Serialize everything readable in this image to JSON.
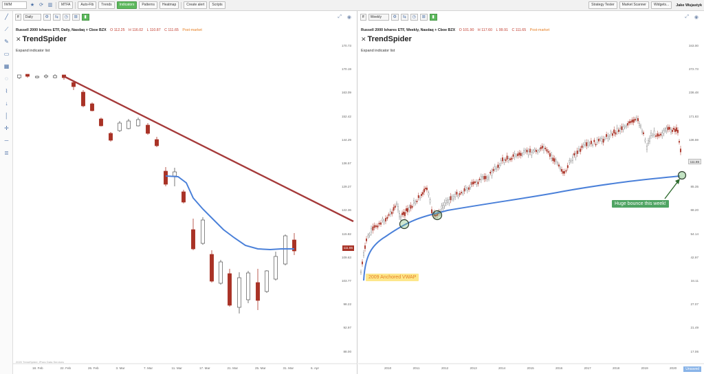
{
  "toolbar": {
    "symbol": "IWM",
    "buttons": [
      "MTFA",
      "Auto-Fib",
      "Trends",
      "Indicators",
      "Patterns",
      "Heatmap",
      "Create alert",
      "Scripts"
    ],
    "active_button": "Indicators",
    "right_buttons": [
      "Strategy Tester",
      "Market Scanner",
      "Widgets..."
    ],
    "user": "Jake Wujastyk"
  },
  "sidebar": {
    "tools": [
      "line-tool-icon",
      "ray-tool-icon",
      "pen-tool-icon",
      "rectangle-icon",
      "fill-icon",
      "circle-icon",
      "fib-icon",
      "arrow-down-icon",
      "vertical-line-icon",
      "cross-icon",
      "horizontal-line-icon",
      "measure-icon"
    ]
  },
  "left_chart": {
    "timeframe_select": "ff",
    "interval_select": "Daily",
    "title": "Russell 2000 Ishares ETF, Daily, Nasdaq + Cboe BZX",
    "open": "O 112.25",
    "high": "H 116.02",
    "low": "L 110.87",
    "close": "C 111.65",
    "status": "Post-market",
    "brand": "TrendSpider",
    "expand": "Expand indicator list",
    "y_labels": [
      "170.73",
      "170.19",
      "163.09",
      "152.42",
      "144.29",
      "136.57",
      "129.27",
      "122.36",
      "115.82",
      "109.63",
      "103.77",
      "98.22",
      "92.97",
      "88.00"
    ],
    "x_labels": [
      "18. Feb",
      "22. Feb",
      "26. Feb",
      "3. Mar",
      "7. Mar",
      "11. Mar",
      "17. Mar",
      "21. Mar",
      "25. Mar",
      "31. Mar",
      "6. Apr"
    ],
    "price_tag": "111.65",
    "watermark": "2020 TrendSpider, IPsec Data Services"
  },
  "right_chart": {
    "timeframe_select": "ff",
    "interval_select": "Weekly",
    "title": "Russell 2000 Ishares ETF, Weekly, Nasdaq + Cboe BZX",
    "open": "O 101.90",
    "high": "H 117.60",
    "low": "L 99.91",
    "close": "C 111.65",
    "status": "Post-market",
    "brand": "TrendSpider",
    "expand": "Expand indicator list",
    "y_labels": [
      "343.00",
      "272.73",
      "236.48",
      "171.83",
      "136.59",
      "111.65",
      "85.35",
      "68.20",
      "54.14",
      "42.97",
      "34.11",
      "27.07",
      "21.49",
      "17.06"
    ],
    "x_labels": [
      "2010",
      "2011",
      "2012",
      "2013",
      "2014",
      "2015",
      "2016",
      "2017",
      "2018",
      "2019",
      "2020"
    ],
    "price_tag": "111.65",
    "note_bounce": "Huge bounce this week!",
    "note_vwap": "2009 Anchored VWAP",
    "done_label": "Unsaved"
  },
  "colors": {
    "up": "#ffffff",
    "down": "#a93226",
    "vwap": "#4a80d9",
    "trendline": "#a53a3a",
    "accent": "#5cb85c"
  }
}
